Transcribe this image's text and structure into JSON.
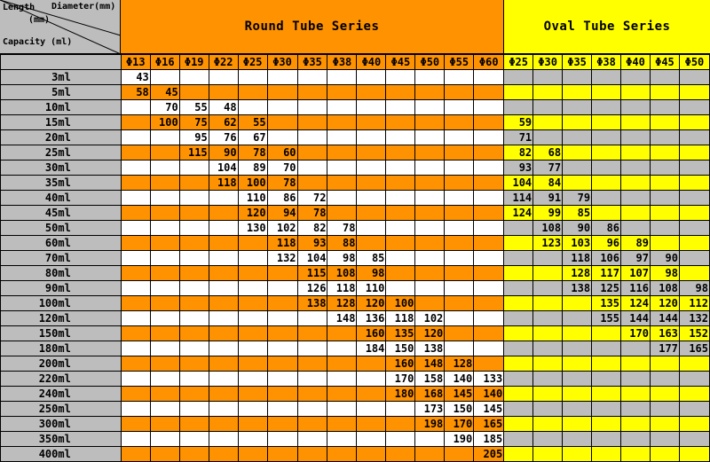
{
  "header": {
    "corner_length": "Length",
    "corner_diameter": "Diameter(mm)",
    "corner_mm": "(mm)",
    "corner_capacity": "Capacity (ml)",
    "round_title": "Round Tube Series",
    "oval_title": "Oval Tube Series"
  },
  "colors": {
    "orange": "#ff9200",
    "yellow": "#ffff00",
    "gray": "#bdbdbd",
    "white": "#ffffff"
  },
  "round_diameters": [
    "Φ13",
    "Φ16",
    "Φ19",
    "Φ22",
    "Φ25",
    "Φ30",
    "Φ35",
    "Φ38",
    "Φ40",
    "Φ45",
    "Φ50",
    "Φ55",
    "Φ60"
  ],
  "oval_diameters": [
    "Φ25",
    "Φ30",
    "Φ35",
    "Φ38",
    "Φ40",
    "Φ45",
    "Φ50"
  ],
  "rows": [
    {
      "capacity": "3ml",
      "round": [
        "43",
        "",
        "",
        "",
        "",
        "",
        "",
        "",
        "",
        "",
        "",
        "",
        ""
      ],
      "oval": [
        "",
        "",
        "",
        "",
        "",
        "",
        ""
      ]
    },
    {
      "capacity": "5ml",
      "round": [
        "58",
        "45",
        "",
        "",
        "",
        "",
        "",
        "",
        "",
        "",
        "",
        "",
        ""
      ],
      "oval": [
        "",
        "",
        "",
        "",
        "",
        "",
        ""
      ]
    },
    {
      "capacity": "10ml",
      "round": [
        "",
        "70",
        "55",
        "48",
        "",
        "",
        "",
        "",
        "",
        "",
        "",
        "",
        ""
      ],
      "oval": [
        "",
        "",
        "",
        "",
        "",
        "",
        ""
      ]
    },
    {
      "capacity": "15ml",
      "round": [
        "",
        "100",
        "75",
        "62",
        "55",
        "",
        "",
        "",
        "",
        "",
        "",
        "",
        ""
      ],
      "oval": [
        "59",
        "",
        "",
        "",
        "",
        "",
        ""
      ]
    },
    {
      "capacity": "20ml",
      "round": [
        "",
        "",
        "95",
        "76",
        "67",
        "",
        "",
        "",
        "",
        "",
        "",
        "",
        ""
      ],
      "oval": [
        "71",
        "",
        "",
        "",
        "",
        "",
        ""
      ]
    },
    {
      "capacity": "25ml",
      "round": [
        "",
        "",
        "115",
        "90",
        "78",
        "60",
        "",
        "",
        "",
        "",
        "",
        "",
        ""
      ],
      "oval": [
        "82",
        "68",
        "",
        "",
        "",
        "",
        ""
      ]
    },
    {
      "capacity": "30ml",
      "round": [
        "",
        "",
        "",
        "104",
        "89",
        "70",
        "",
        "",
        "",
        "",
        "",
        "",
        ""
      ],
      "oval": [
        "93",
        "77",
        "",
        "",
        "",
        "",
        ""
      ]
    },
    {
      "capacity": "35ml",
      "round": [
        "",
        "",
        "",
        "118",
        "100",
        "78",
        "",
        "",
        "",
        "",
        "",
        "",
        ""
      ],
      "oval": [
        "104",
        "84",
        "",
        "",
        "",
        "",
        ""
      ]
    },
    {
      "capacity": "40ml",
      "round": [
        "",
        "",
        "",
        "",
        "110",
        "86",
        "72",
        "",
        "",
        "",
        "",
        "",
        ""
      ],
      "oval": [
        "114",
        "91",
        "79",
        "",
        "",
        "",
        ""
      ]
    },
    {
      "capacity": "45ml",
      "round": [
        "",
        "",
        "",
        "",
        "120",
        "94",
        "78",
        "",
        "",
        "",
        "",
        "",
        ""
      ],
      "oval": [
        "124",
        "99",
        "85",
        "",
        "",
        "",
        ""
      ]
    },
    {
      "capacity": "50ml",
      "round": [
        "",
        "",
        "",
        "",
        "130",
        "102",
        "82",
        "78",
        "",
        "",
        "",
        "",
        ""
      ],
      "oval": [
        "",
        "108",
        "90",
        "86",
        "",
        "",
        ""
      ]
    },
    {
      "capacity": "60ml",
      "round": [
        "",
        "",
        "",
        "",
        "",
        "118",
        "93",
        "88",
        "",
        "",
        "",
        "",
        ""
      ],
      "oval": [
        "",
        "123",
        "103",
        "96",
        "89",
        "",
        ""
      ]
    },
    {
      "capacity": "70ml",
      "round": [
        "",
        "",
        "",
        "",
        "",
        "132",
        "104",
        "98",
        "85",
        "",
        "",
        "",
        ""
      ],
      "oval": [
        "",
        "",
        "118",
        "106",
        "97",
        "90",
        ""
      ]
    },
    {
      "capacity": "80ml",
      "round": [
        "",
        "",
        "",
        "",
        "",
        "",
        "115",
        "108",
        "98",
        "",
        "",
        "",
        ""
      ],
      "oval": [
        "",
        "",
        "128",
        "117",
        "107",
        "98",
        ""
      ]
    },
    {
      "capacity": "90ml",
      "round": [
        "",
        "",
        "",
        "",
        "",
        "",
        "126",
        "118",
        "110",
        "",
        "",
        "",
        ""
      ],
      "oval": [
        "",
        "",
        "138",
        "125",
        "116",
        "108",
        "98"
      ]
    },
    {
      "capacity": "100ml",
      "round": [
        "",
        "",
        "",
        "",
        "",
        "",
        "138",
        "128",
        "120",
        "100",
        "",
        "",
        ""
      ],
      "oval": [
        "",
        "",
        "",
        "135",
        "124",
        "120",
        "112"
      ]
    },
    {
      "capacity": "120ml",
      "round": [
        "",
        "",
        "",
        "",
        "",
        "",
        "",
        "148",
        "136",
        "118",
        "102",
        "",
        ""
      ],
      "oval": [
        "",
        "",
        "",
        "155",
        "144",
        "144",
        "132"
      ]
    },
    {
      "capacity": "150ml",
      "round": [
        "",
        "",
        "",
        "",
        "",
        "",
        "",
        "",
        "160",
        "135",
        "120",
        "",
        ""
      ],
      "oval": [
        "",
        "",
        "",
        "",
        "170",
        "163",
        "152"
      ]
    },
    {
      "capacity": "180ml",
      "round": [
        "",
        "",
        "",
        "",
        "",
        "",
        "",
        "",
        "184",
        "150",
        "138",
        "",
        ""
      ],
      "oval": [
        "",
        "",
        "",
        "",
        "",
        "177",
        "165"
      ]
    },
    {
      "capacity": "200ml",
      "round": [
        "",
        "",
        "",
        "",
        "",
        "",
        "",
        "",
        "",
        "160",
        "148",
        "128",
        ""
      ],
      "oval": [
        "",
        "",
        "",
        "",
        "",
        "",
        ""
      ]
    },
    {
      "capacity": "220ml",
      "round": [
        "",
        "",
        "",
        "",
        "",
        "",
        "",
        "",
        "",
        "170",
        "158",
        "140",
        "133"
      ],
      "oval": [
        "",
        "",
        "",
        "",
        "",
        "",
        ""
      ]
    },
    {
      "capacity": "240ml",
      "round": [
        "",
        "",
        "",
        "",
        "",
        "",
        "",
        "",
        "",
        "180",
        "168",
        "145",
        "140"
      ],
      "oval": [
        "",
        "",
        "",
        "",
        "",
        "",
        ""
      ]
    },
    {
      "capacity": "250ml",
      "round": [
        "",
        "",
        "",
        "",
        "",
        "",
        "",
        "",
        "",
        "",
        "173",
        "150",
        "145"
      ],
      "oval": [
        "",
        "",
        "",
        "",
        "",
        "",
        ""
      ]
    },
    {
      "capacity": "300ml",
      "round": [
        "",
        "",
        "",
        "",
        "",
        "",
        "",
        "",
        "",
        "",
        "198",
        "170",
        "165"
      ],
      "oval": [
        "",
        "",
        "",
        "",
        "",
        "",
        ""
      ]
    },
    {
      "capacity": "350ml",
      "round": [
        "",
        "",
        "",
        "",
        "",
        "",
        "",
        "",
        "",
        "",
        "",
        "190",
        "185"
      ],
      "oval": [
        "",
        "",
        "",
        "",
        "",
        "",
        ""
      ]
    },
    {
      "capacity": "400ml",
      "round": [
        "",
        "",
        "",
        "",
        "",
        "",
        "",
        "",
        "",
        "",
        "",
        "",
        "205"
      ],
      "oval": [
        "",
        "",
        "",
        "",
        "",
        "",
        ""
      ]
    }
  ]
}
